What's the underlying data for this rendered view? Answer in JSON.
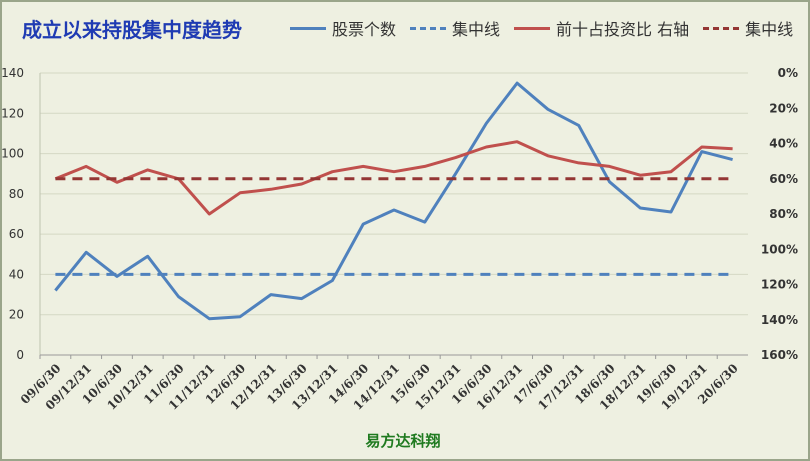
{
  "title": "成立以来持股集中度趋势",
  "footer": "易方达科翔",
  "legend": [
    {
      "label": "股票个数",
      "color": "#4f81bd",
      "dash": false
    },
    {
      "label": "集中线",
      "color": "#4f81bd",
      "dash": true
    },
    {
      "label": "前十占投资比 右轴",
      "color": "#c0504d",
      "dash": false
    },
    {
      "label": "集中线",
      "color": "#943634",
      "dash": true
    }
  ],
  "chart_data": {
    "type": "line",
    "categories": [
      "09/6/30",
      "09/12/31",
      "10/6/30",
      "10/12/31",
      "11/6/30",
      "11/12/31",
      "12/6/30",
      "12/12/31",
      "13/6/30",
      "13/12/31",
      "14/6/30",
      "14/12/31",
      "15/6/30",
      "15/12/31",
      "16/6/30",
      "16/12/31",
      "17/6/30",
      "17/12/31",
      "18/6/30",
      "18/12/31",
      "19/6/30",
      "19/12/31",
      "20/6/30"
    ],
    "left_axis": {
      "ylim": [
        0,
        140
      ],
      "ticks": [
        "0",
        "20",
        "40",
        "60",
        "80",
        "100",
        "120",
        "140"
      ]
    },
    "right_axis": {
      "ylim": [
        0,
        1.6
      ],
      "inverted": true,
      "ticks": [
        "0%",
        "20%",
        "40%",
        "60%",
        "80%",
        "100%",
        "120%",
        "140%",
        "160%"
      ]
    },
    "series": [
      {
        "name": "股票个数",
        "axis": "left",
        "color": "#4f81bd",
        "dash": false,
        "values": [
          32,
          51,
          39,
          49,
          29,
          18,
          19,
          30,
          28,
          37,
          65,
          72,
          66,
          90,
          115,
          135,
          122,
          114,
          86,
          73,
          71,
          101,
          97
        ]
      },
      {
        "name": "集中线",
        "axis": "left",
        "color": "#4f81bd",
        "dash": true,
        "values": [
          40,
          40,
          40,
          40,
          40,
          40,
          40,
          40,
          40,
          40,
          40,
          40,
          40,
          40,
          40,
          40,
          40,
          40,
          40,
          40,
          40,
          40,
          40
        ]
      },
      {
        "name": "前十占投资比 右轴",
        "axis": "right",
        "color": "#c0504d",
        "dash": false,
        "values": [
          0.6,
          0.53,
          0.62,
          0.55,
          0.6,
          0.8,
          0.68,
          0.66,
          0.63,
          0.56,
          0.53,
          0.56,
          0.53,
          0.48,
          0.42,
          0.39,
          0.47,
          0.51,
          0.53,
          0.58,
          0.56,
          0.42,
          0.43
        ]
      },
      {
        "name": "集中线",
        "axis": "right",
        "color": "#943634",
        "dash": true,
        "values": [
          0.6,
          0.6,
          0.6,
          0.6,
          0.6,
          0.6,
          0.6,
          0.6,
          0.6,
          0.6,
          0.6,
          0.6,
          0.6,
          0.6,
          0.6,
          0.6,
          0.6,
          0.6,
          0.6,
          0.6,
          0.6,
          0.6,
          0.6
        ]
      }
    ],
    "grid": true,
    "legend_position": "top"
  }
}
